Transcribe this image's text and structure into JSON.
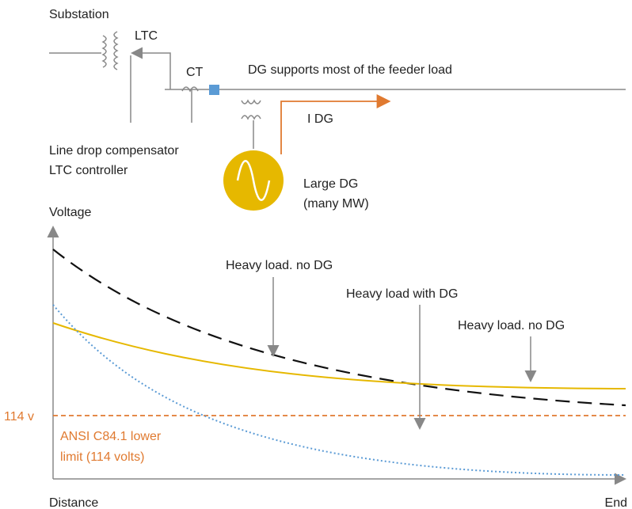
{
  "schematic": {
    "substation": "Substation",
    "ltc": "LTC",
    "ct": "CT",
    "feeder_note": "DG supports most of the feeder load",
    "idg": "I DG",
    "controller": [
      "Line drop compensator",
      "LTC controller"
    ],
    "dg": [
      "Large DG",
      "(many MW)"
    ]
  },
  "plot": {
    "y_label": "Voltage",
    "x_label": "Distance",
    "x_end": "End",
    "limit_tick": "114 v",
    "limit_label": [
      "ANSI C84.1 lower",
      "limit (114 volts)"
    ],
    "annotations": [
      "Heavy load. no DG",
      "Heavy load with DG",
      "Heavy load. no DG"
    ]
  }
}
